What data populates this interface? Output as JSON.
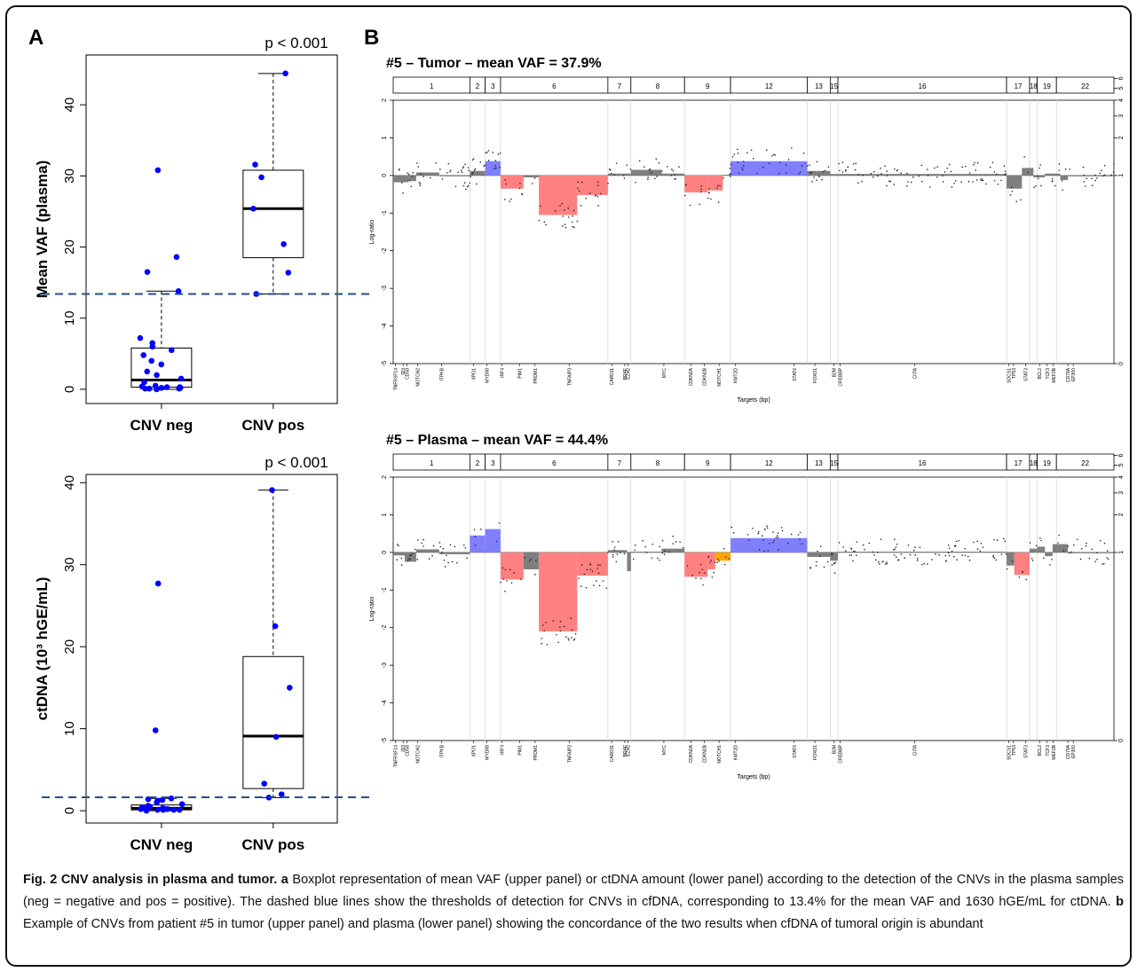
{
  "panel_labels": {
    "a": "A",
    "b": "B"
  },
  "chart_data": [
    {
      "type": "box",
      "panel": "A-upper",
      "title": "p < 0.001",
      "ylabel": "Mean VAF (plasma)",
      "ylim": [
        -2,
        47
      ],
      "yticks": [
        0,
        10,
        20,
        30,
        40
      ],
      "categories": [
        "CNV neg",
        "CNV pos"
      ],
      "boxes": [
        {
          "min": 0,
          "q1": 0.3,
          "median": 1.3,
          "q3": 5.8,
          "max": 13.8
        },
        {
          "min": 13.4,
          "q1": 18.5,
          "median": 25.4,
          "q3": 30.8,
          "max": 44.4
        }
      ],
      "points": [
        [
          0.1,
          0.2,
          0.4,
          0.0,
          0.3,
          0.1,
          0.5,
          0.2,
          0.3,
          0.1,
          1.0,
          1.5,
          2.0,
          2.5,
          3.5,
          4.0,
          4.8,
          5.5,
          6.0,
          6.5,
          7.2,
          13.8,
          16.5,
          18.6,
          30.8
        ],
        [
          13.4,
          16.4,
          20.4,
          25.4,
          29.8,
          31.6,
          44.4
        ]
      ],
      "threshold": 13.4,
      "point_color": "#0000ff",
      "threshold_color": "#1f4e8c"
    },
    {
      "type": "box",
      "panel": "A-lower",
      "title": "p < 0.001",
      "ylabel": "ctDNA (10³ hGE/mL)",
      "ylim": [
        -1.5,
        41
      ],
      "yticks": [
        0,
        10,
        20,
        30,
        40
      ],
      "categories": [
        "CNV neg",
        "CNV pos"
      ],
      "boxes": [
        {
          "min": 0,
          "q1": 0.1,
          "median": 0.3,
          "q3": 0.7,
          "max": 1.5
        },
        {
          "min": 1.6,
          "q1": 2.7,
          "median": 9.1,
          "q3": 18.8,
          "max": 39.1
        }
      ],
      "points": [
        [
          0.0,
          0.1,
          0.2,
          0.1,
          0.3,
          0.2,
          0.4,
          0.1,
          0.5,
          0.3,
          0.6,
          0.2,
          0.1,
          0.8,
          1.0,
          1.2,
          1.4,
          1.5,
          1.3,
          9.8,
          27.7
        ],
        [
          1.6,
          2.0,
          3.3,
          9.0,
          15.0,
          22.5,
          39.1
        ]
      ],
      "threshold": 1.63,
      "point_color": "#0000ff",
      "threshold_color": "#1f4e8c"
    },
    {
      "type": "segment-plot",
      "panel": "B-upper",
      "title": "#5 – Tumor – mean VAF = 37.9%",
      "xlabel": "Targets (bp)",
      "ylabel": "Log-ratio",
      "ylim": [
        -5,
        2
      ],
      "yticks": [
        2,
        1,
        0,
        -1,
        -2,
        -3,
        -4,
        -5
      ],
      "right_ticks": [
        "6",
        "5",
        "4",
        "3",
        "2",
        "1",
        "0"
      ],
      "chromosomes": [
        {
          "label": "1",
          "start": 0,
          "end": 10
        },
        {
          "label": "2",
          "start": 10,
          "end": 12
        },
        {
          "label": "3",
          "start": 12,
          "end": 14
        },
        {
          "label": "6",
          "start": 14,
          "end": 28
        },
        {
          "label": "7",
          "start": 28,
          "end": 31
        },
        {
          "label": "8",
          "start": 31,
          "end": 38
        },
        {
          "label": "9",
          "start": 38,
          "end": 44
        },
        {
          "label": "12",
          "start": 44,
          "end": 54
        },
        {
          "label": "13",
          "start": 54,
          "end": 57
        },
        {
          "label": "15",
          "start": 57,
          "end": 58
        },
        {
          "label": "16",
          "start": 58,
          "end": 80
        },
        {
          "label": "17",
          "start": 80,
          "end": 83
        },
        {
          "label": "18",
          "start": 83,
          "end": 84
        },
        {
          "label": "19",
          "start": 84,
          "end": 86.5
        },
        {
          "label": "22",
          "start": 86.5,
          "end": 94
        }
      ],
      "targets": [
        {
          "name": "TNFRSF14",
          "pos": 0.3
        },
        {
          "name": "ID3",
          "pos": 1.3
        },
        {
          "name": "CD58",
          "pos": 1.8
        },
        {
          "name": "NOTCH2",
          "pos": 3.2
        },
        {
          "name": "ITPKB",
          "pos": 6.3
        },
        {
          "name": "XPO1",
          "pos": 10.5
        },
        {
          "name": "MYD88",
          "pos": 12.2
        },
        {
          "name": "IRF4",
          "pos": 14.2
        },
        {
          "name": "PIM1",
          "pos": 16.5
        },
        {
          "name": "PRDM1",
          "pos": 18.5
        },
        {
          "name": "TNFAIP3",
          "pos": 23.0
        },
        {
          "name": "CARD11",
          "pos": 28.5
        },
        {
          "name": "BRAF",
          "pos": 30.2
        },
        {
          "name": "EZH2",
          "pos": 30.6
        },
        {
          "name": "MYC",
          "pos": 35.3
        },
        {
          "name": "CDKN2A",
          "pos": 38.8
        },
        {
          "name": "CDKN2B",
          "pos": 40.6
        },
        {
          "name": "NOTCH1",
          "pos": 42.5
        },
        {
          "name": "KMT2D",
          "pos": 44.6
        },
        {
          "name": "STAT6",
          "pos": 52.3
        },
        {
          "name": "FOXO1",
          "pos": 55.0
        },
        {
          "name": "B2M",
          "pos": 57.5
        },
        {
          "name": "CREBBP",
          "pos": 58.3
        },
        {
          "name": "CIITA",
          "pos": 68.0
        },
        {
          "name": "SOCS1",
          "pos": 80.3
        },
        {
          "name": "TP53",
          "pos": 80.9
        },
        {
          "name": "STAT3",
          "pos": 82.5
        },
        {
          "name": "BCL2",
          "pos": 84.3
        },
        {
          "name": "TCF3",
          "pos": 85.3
        },
        {
          "name": "MEF2B",
          "pos": 86.1
        },
        {
          "name": "CD79A",
          "pos": 88.0
        },
        {
          "name": "EP300",
          "pos": 88.7
        }
      ],
      "segments": [
        {
          "start": 0,
          "end": 2,
          "value": -0.18,
          "color": "#7f7f7f"
        },
        {
          "start": 2,
          "end": 3,
          "value": -0.15,
          "color": "#7f7f7f"
        },
        {
          "start": 3,
          "end": 6,
          "value": 0.08,
          "color": "#7f7f7f"
        },
        {
          "start": 6,
          "end": 10,
          "value": -0.02,
          "color": "#7f7f7f"
        },
        {
          "start": 10,
          "end": 12,
          "value": 0.12,
          "color": "#7f7f7f"
        },
        {
          "start": 12,
          "end": 14,
          "value": 0.38,
          "color": "#8080ff"
        },
        {
          "start": 14,
          "end": 17,
          "value": -0.35,
          "color": "#ff8080"
        },
        {
          "start": 17,
          "end": 19,
          "value": -0.05,
          "color": "#7f7f7f"
        },
        {
          "start": 19,
          "end": 24,
          "value": -1.05,
          "color": "#ff8080"
        },
        {
          "start": 24,
          "end": 28,
          "value": -0.52,
          "color": "#ff8080"
        },
        {
          "start": 28,
          "end": 31,
          "value": 0.05,
          "color": "#7f7f7f"
        },
        {
          "start": 31,
          "end": 35,
          "value": 0.15,
          "color": "#7f7f7f"
        },
        {
          "start": 35,
          "end": 38,
          "value": 0.05,
          "color": "#7f7f7f"
        },
        {
          "start": 38,
          "end": 41,
          "value": -0.45,
          "color": "#ff8080"
        },
        {
          "start": 41,
          "end": 43,
          "value": -0.4,
          "color": "#ff8080"
        },
        {
          "start": 43,
          "end": 44,
          "value": 0.02,
          "color": "#7f7f7f"
        },
        {
          "start": 44,
          "end": 54,
          "value": 0.38,
          "color": "#8080ff"
        },
        {
          "start": 54,
          "end": 57,
          "value": 0.12,
          "color": "#7f7f7f"
        },
        {
          "start": 57,
          "end": 80,
          "value": 0.04,
          "color": "#7f7f7f"
        },
        {
          "start": 80,
          "end": 82,
          "value": -0.35,
          "color": "#7f7f7f"
        },
        {
          "start": 82,
          "end": 83.5,
          "value": 0.2,
          "color": "#7f7f7f"
        },
        {
          "start": 83.5,
          "end": 85,
          "value": -0.05,
          "color": "#7f7f7f"
        },
        {
          "start": 85,
          "end": 87,
          "value": 0.05,
          "color": "#7f7f7f"
        },
        {
          "start": 87,
          "end": 88,
          "value": -0.12,
          "color": "#7f7f7f"
        },
        {
          "start": 88,
          "end": 94,
          "value": 0.0,
          "color": "#7f7f7f"
        }
      ]
    },
    {
      "type": "segment-plot",
      "panel": "B-lower",
      "title": "#5 – Plasma – mean VAF = 44.4%",
      "xlabel": "Targets (bp)",
      "ylabel": "Log-ratio",
      "ylim": [
        -5,
        2
      ],
      "yticks": [
        2,
        1,
        0,
        -1,
        -2,
        -3,
        -4,
        -5
      ],
      "right_ticks": [
        "6",
        "5",
        "4",
        "3",
        "2",
        "1",
        "0"
      ],
      "chromosomes": "same-as-B-upper",
      "targets": "same-as-B-upper",
      "segments": [
        {
          "start": 0,
          "end": 1.5,
          "value": -0.08,
          "color": "#7f7f7f"
        },
        {
          "start": 1.5,
          "end": 3,
          "value": -0.25,
          "color": "#7f7f7f"
        },
        {
          "start": 3,
          "end": 6,
          "value": 0.08,
          "color": "#7f7f7f"
        },
        {
          "start": 6,
          "end": 10,
          "value": -0.05,
          "color": "#7f7f7f"
        },
        {
          "start": 10,
          "end": 12,
          "value": 0.45,
          "color": "#8080ff"
        },
        {
          "start": 12,
          "end": 14,
          "value": 0.62,
          "color": "#8080ff"
        },
        {
          "start": 14,
          "end": 17,
          "value": -0.72,
          "color": "#ff8080"
        },
        {
          "start": 17,
          "end": 19,
          "value": -0.45,
          "color": "#7f7f7f"
        },
        {
          "start": 19,
          "end": 24,
          "value": -2.1,
          "color": "#ff8080"
        },
        {
          "start": 24,
          "end": 28,
          "value": -0.62,
          "color": "#ff8080"
        },
        {
          "start": 28,
          "end": 30.5,
          "value": 0.06,
          "color": "#7f7f7f"
        },
        {
          "start": 30.5,
          "end": 31,
          "value": -0.5,
          "color": "#7f7f7f"
        },
        {
          "start": 31,
          "end": 35,
          "value": 0.02,
          "color": "#7f7f7f"
        },
        {
          "start": 35,
          "end": 38,
          "value": 0.1,
          "color": "#7f7f7f"
        },
        {
          "start": 38,
          "end": 41,
          "value": -0.65,
          "color": "#ff8080"
        },
        {
          "start": 41,
          "end": 42,
          "value": -0.45,
          "color": "#ff8080"
        },
        {
          "start": 42,
          "end": 44,
          "value": -0.22,
          "color": "#ffa500"
        },
        {
          "start": 44,
          "end": 54,
          "value": 0.38,
          "color": "#8080ff"
        },
        {
          "start": 54,
          "end": 57,
          "value": -0.12,
          "color": "#7f7f7f"
        },
        {
          "start": 57,
          "end": 58,
          "value": -0.22,
          "color": "#7f7f7f"
        },
        {
          "start": 58,
          "end": 80,
          "value": 0.02,
          "color": "#7f7f7f"
        },
        {
          "start": 80,
          "end": 81,
          "value": -0.35,
          "color": "#7f7f7f"
        },
        {
          "start": 81,
          "end": 83,
          "value": -0.6,
          "color": "#ff8080"
        },
        {
          "start": 83,
          "end": 84,
          "value": 0.1,
          "color": "#7f7f7f"
        },
        {
          "start": 84,
          "end": 85,
          "value": 0.15,
          "color": "#7f7f7f"
        },
        {
          "start": 85,
          "end": 86,
          "value": -0.1,
          "color": "#7f7f7f"
        },
        {
          "start": 86,
          "end": 88,
          "value": 0.22,
          "color": "#7f7f7f"
        },
        {
          "start": 88,
          "end": 94,
          "value": 0.0,
          "color": "#7f7f7f"
        }
      ]
    }
  ],
  "caption": {
    "bold": "Fig. 2 CNV analysis in plasma and tumor.",
    "a_label": "a",
    "a_text": "Boxplot representation of mean VAF (upper panel) or ctDNA amount (lower panel) according to the detection of the CNVs in the plasma samples (neg = negative and pos = positive). The dashed blue lines show the thresholds of detection for CNVs in cfDNA, corresponding to 13.4% for the mean VAF and 1630 hGE/mL for ctDNA.",
    "b_label": "b",
    "b_text": "Example of CNVs from patient #5 in tumor (upper panel) and plasma (lower panel) showing the concordance of the two results when cfDNA of tumoral origin is abundant"
  }
}
